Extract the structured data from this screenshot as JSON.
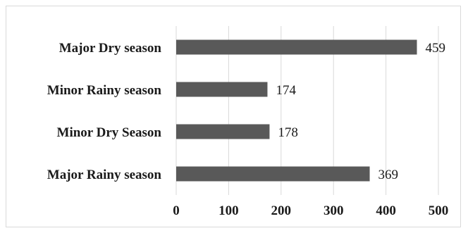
{
  "chart_data": {
    "type": "bar",
    "orientation": "horizontal",
    "categories": [
      "Major Dry season",
      "Minor Rainy season",
      "Minor Dry Season",
      "Major Rainy season"
    ],
    "values": [
      459,
      174,
      178,
      369
    ],
    "xlim": [
      0,
      500
    ],
    "xticks": [
      0,
      100,
      200,
      300,
      400,
      500
    ],
    "grid": true,
    "bar_color": "#595959"
  }
}
